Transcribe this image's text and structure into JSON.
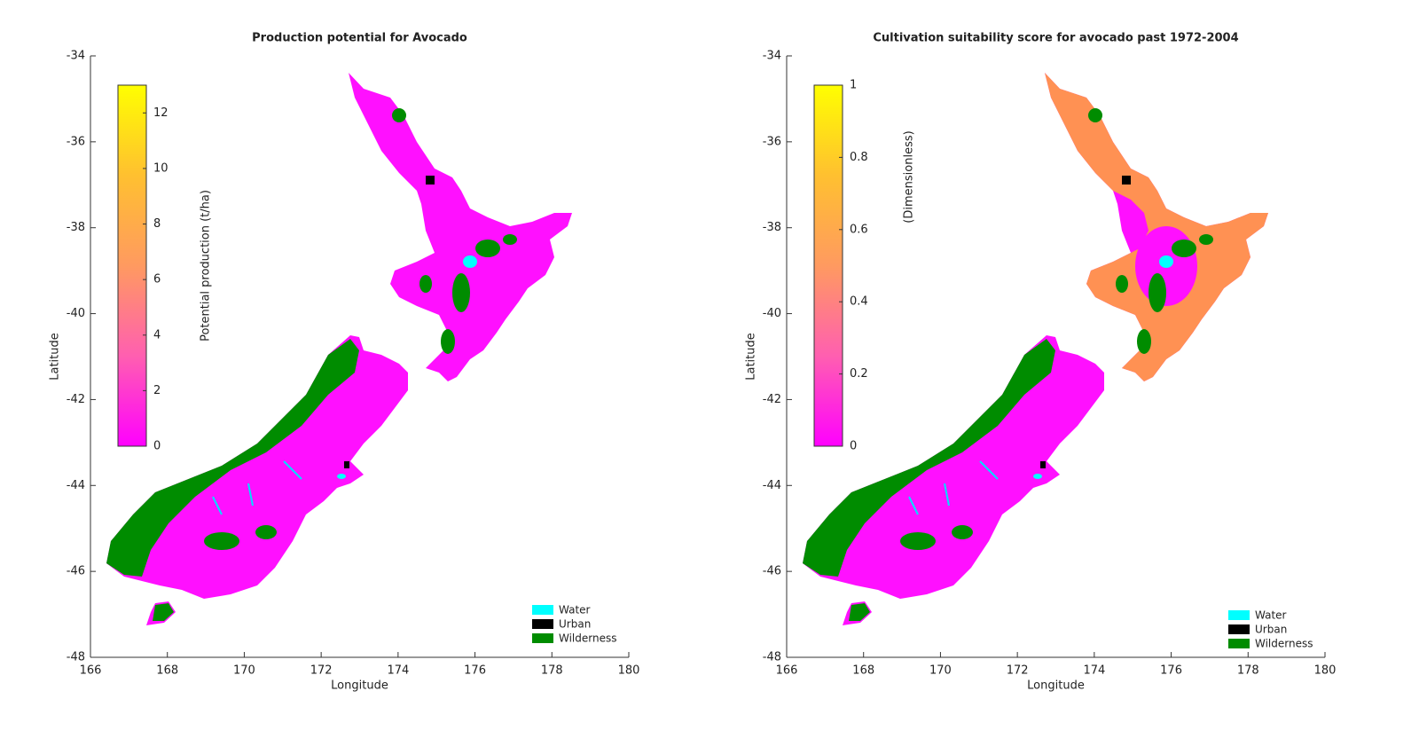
{
  "chart_data": [
    {
      "type": "map",
      "title": "Production potential for Avocado",
      "xlabel": "Longitude",
      "ylabel": "Latitude",
      "xlim": [
        166,
        180
      ],
      "ylim": [
        -48,
        -34
      ],
      "xticks": [
        166,
        168,
        170,
        172,
        174,
        176,
        178,
        180
      ],
      "yticks": [
        -48,
        -46,
        -44,
        -42,
        -40,
        -38,
        -36,
        -34
      ],
      "colorbar": {
        "label": "Potential production (t/ha)",
        "lim": [
          0,
          13
        ],
        "ticks": [
          0,
          2,
          4,
          6,
          8,
          10,
          12
        ],
        "colormap": [
          "#ff00ff",
          "#ff5fb0",
          "#ff9a60",
          "#ffc030",
          "#ffff00"
        ]
      },
      "legend": [
        {
          "name": "Water",
          "color": "#00ffff"
        },
        {
          "name": "Urban",
          "color": "#000000"
        },
        {
          "name": "Wilderness",
          "color": "#008c00"
        }
      ]
    },
    {
      "type": "map",
      "title": "Cultivation suitability score for avocado past 1972-2004",
      "xlabel": "Longitude",
      "ylabel": "Latitude",
      "xlim": [
        166,
        180
      ],
      "ylim": [
        -48,
        -34
      ],
      "xticks": [
        166,
        168,
        170,
        172,
        174,
        176,
        178,
        180
      ],
      "yticks": [
        -48,
        -46,
        -44,
        -42,
        -40,
        -38,
        -36,
        -34
      ],
      "colorbar": {
        "label": "(Dimensionless)",
        "lim": [
          0,
          1
        ],
        "ticks": [
          0,
          0.2,
          0.4,
          0.6,
          0.8,
          1
        ],
        "colormap": [
          "#ff00ff",
          "#ff5fb0",
          "#ff9a60",
          "#ffc030",
          "#ffff00"
        ]
      },
      "legend": [
        {
          "name": "Water",
          "color": "#00ffff"
        },
        {
          "name": "Urban",
          "color": "#000000"
        },
        {
          "name": "Wilderness",
          "color": "#008c00"
        }
      ]
    }
  ]
}
